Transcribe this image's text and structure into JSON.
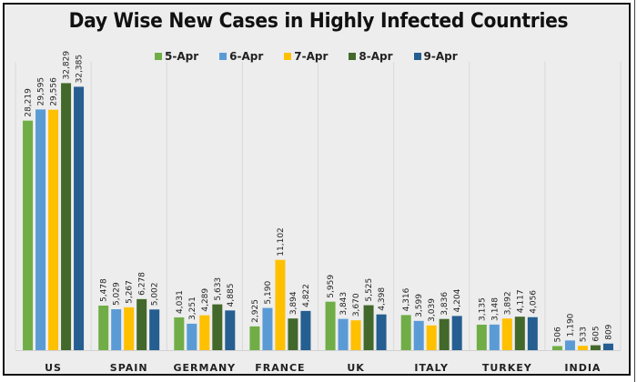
{
  "chart_data": {
    "type": "bar",
    "title": "Day Wise New Cases in Highly Infected Countries",
    "xlabel": "",
    "ylabel": "",
    "ylim": [
      0,
      35000
    ],
    "grid": false,
    "legend_position": "top-center",
    "categories": [
      "US",
      "SPAIN",
      "GERMANY",
      "FRANCE",
      "UK",
      "ITALY",
      "TURKEY",
      "INDIA"
    ],
    "series": [
      {
        "name": "5-Apr",
        "color": "#70ad47",
        "values": [
          28219,
          5478,
          4031,
          2925,
          5959,
          4316,
          3135,
          506
        ]
      },
      {
        "name": "6-Apr",
        "color": "#5b9bd5",
        "values": [
          29595,
          5029,
          3251,
          5190,
          3843,
          3599,
          3148,
          1190
        ]
      },
      {
        "name": "7-Apr",
        "color": "#ffc000",
        "values": [
          29556,
          5267,
          4289,
          11102,
          3670,
          3039,
          3892,
          533
        ]
      },
      {
        "name": "8-Apr",
        "color": "#43682b",
        "values": [
          32829,
          6278,
          5633,
          3894,
          5525,
          3836,
          4117,
          605
        ]
      },
      {
        "name": "9-Apr",
        "color": "#255e91",
        "values": [
          32385,
          5002,
          4885,
          4822,
          4398,
          4204,
          4056,
          809
        ]
      }
    ],
    "data_labels": [
      [
        "28,219",
        "5,478",
        "4,031",
        "2,925",
        "5,959",
        "4,316",
        "3,135",
        "506"
      ],
      [
        "29,595",
        "5,029",
        "3,251",
        "5,190",
        "3,843",
        "3,599",
        "3,148",
        "1,190"
      ],
      [
        "29,556",
        "5,267",
        "4,289",
        "11,102",
        "3,670",
        "3,039",
        "3,892",
        "533"
      ],
      [
        "32,829",
        "6,278",
        "5,633",
        "3,894",
        "5,525",
        "3,836",
        "4,117",
        "605"
      ],
      [
        "32,385",
        "5,002",
        "4,885",
        "4,822",
        "4,398",
        "4,204",
        "4,056",
        "809"
      ]
    ]
  }
}
